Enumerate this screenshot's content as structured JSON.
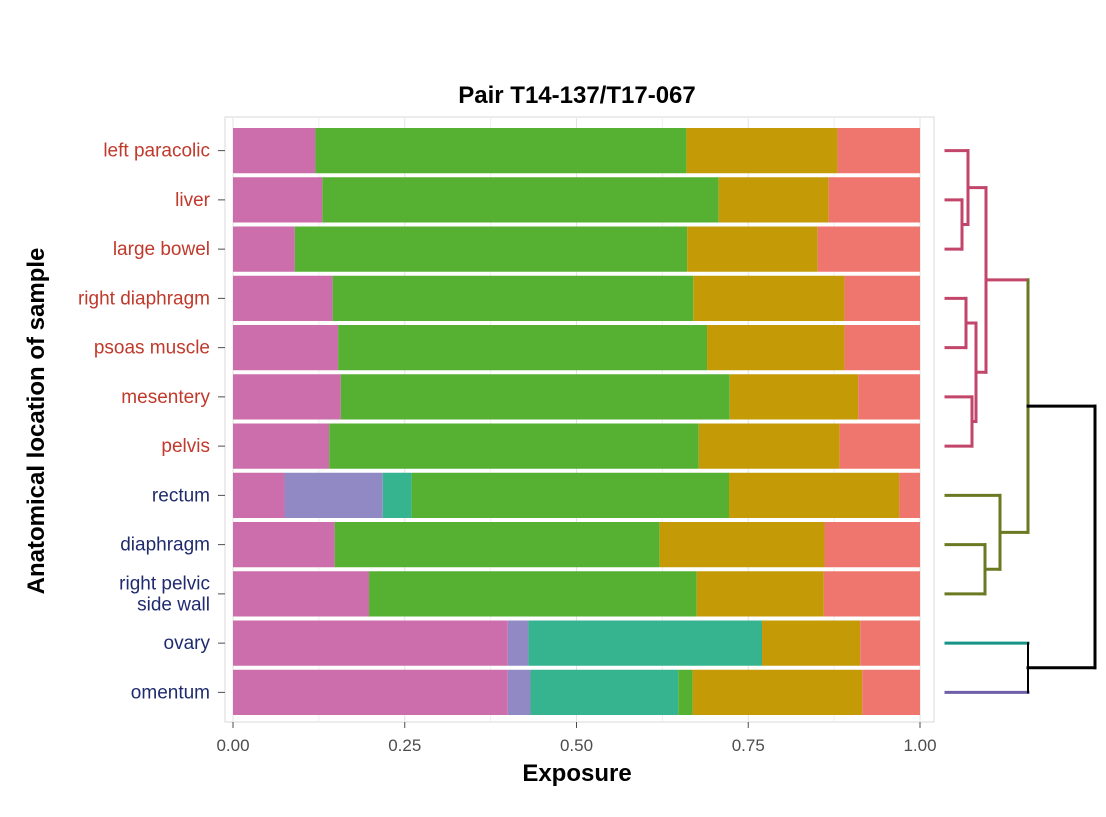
{
  "chart_data": {
    "type": "bar",
    "orientation": "horizontal",
    "stacked": true,
    "title": "Pair T14-137/T17-067",
    "xlabel": "Exposure",
    "ylabel": "Anatomical location of sample",
    "xlim": [
      0,
      1
    ],
    "xticks": [
      "0.00",
      "0.25",
      "0.50",
      "0.75",
      "1.00"
    ],
    "grid": true,
    "legend": "none",
    "categories": [
      {
        "label": [
          "left paracolic"
        ],
        "color": "#c0392b"
      },
      {
        "label": [
          "liver"
        ],
        "color": "#c0392b"
      },
      {
        "label": [
          "large bowel"
        ],
        "color": "#c0392b"
      },
      {
        "label": [
          "right diaphragm"
        ],
        "color": "#c0392b"
      },
      {
        "label": [
          "psoas muscle"
        ],
        "color": "#c0392b"
      },
      {
        "label": [
          "mesentery"
        ],
        "color": "#c0392b"
      },
      {
        "label": [
          "pelvis"
        ],
        "color": "#c0392b"
      },
      {
        "label": [
          "rectum"
        ],
        "color": "#1f2b6e"
      },
      {
        "label": [
          "diaphragm"
        ],
        "color": "#1f2b6e"
      },
      {
        "label": [
          "right pelvic",
          "side wall"
        ],
        "color": "#1f2b6e"
      },
      {
        "label": [
          "ovary"
        ],
        "color": "#1f2b6e"
      },
      {
        "label": [
          "omentum"
        ],
        "color": "#1f2b6e"
      }
    ],
    "segment_colors": [
      "#cc6eac",
      "#9189c3",
      "#36b38f",
      "#56b132",
      "#c49b06",
      "#ef766e"
    ],
    "series": [
      {
        "color": "#cc6eac",
        "values": [
          0.12,
          0.13,
          0.09,
          0.145,
          0.153,
          0.157,
          0.14,
          0.075,
          0.148,
          0.198,
          0.4,
          0.4
        ]
      },
      {
        "color": "#9189c3",
        "values": [
          0,
          0,
          0,
          0,
          0,
          0,
          0,
          0.143,
          0,
          0,
          0.03,
          0.033
        ]
      },
      {
        "color": "#36b38f",
        "values": [
          0,
          0,
          0,
          0,
          0,
          0,
          0,
          0.042,
          0,
          0,
          0.34,
          0.215
        ]
      },
      {
        "color": "#56b132",
        "values": [
          0.54,
          0.577,
          0.571,
          0.525,
          0.537,
          0.566,
          0.538,
          0.462,
          0.473,
          0.477,
          0,
          0.021
        ]
      },
      {
        "color": "#c49b06",
        "values": [
          0.22,
          0.16,
          0.19,
          0.22,
          0.2,
          0.187,
          0.205,
          0.248,
          0.24,
          0.185,
          0.143,
          0.247
        ]
      },
      {
        "color": "#ef766e",
        "values": [
          0.12,
          0.133,
          0.149,
          0.11,
          0.11,
          0.09,
          0.117,
          0.03,
          0.139,
          0.14,
          0.087,
          0.084
        ]
      }
    ],
    "dendrogram": {
      "branches": [
        {
          "color": "#c2456a",
          "leaves": [
            "left paracolic",
            "liver",
            "large bowel",
            "right diaphragm",
            "psoas muscle",
            "mesentery",
            "pelvis"
          ]
        },
        {
          "color": "#6b7a22",
          "leaves": [
            "rectum",
            "diaphragm",
            "right pelvic side wall"
          ]
        },
        {
          "color": "#169488",
          "leaves": [
            "ovary"
          ]
        },
        {
          "color": "#6e5fa8",
          "leaves": [
            "omentum"
          ]
        },
        {
          "color": "#000000",
          "leaves": [
            "root"
          ]
        }
      ]
    }
  }
}
